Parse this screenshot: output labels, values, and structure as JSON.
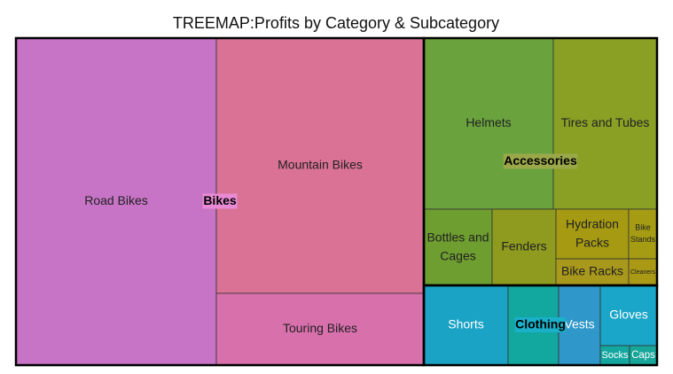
{
  "chart_data": {
    "type": "treemap",
    "title": "TREEMAP:Profits by Category & Subcategory",
    "groups": [
      {
        "name": "Bikes",
        "label_color": "#e98bd4",
        "children": [
          {
            "name": "Road Bikes",
            "value": 83394,
            "color": "#c774c6"
          },
          {
            "name": "Mountain Bikes",
            "value": 67392,
            "color": "#d97294"
          },
          {
            "name": "Touring Bikes",
            "value": 18954,
            "color": "#d870ac"
          }
        ]
      },
      {
        "name": "Accessories",
        "label_color": "#9aa84a",
        "children": [
          {
            "name": "Helmets",
            "value": 28178,
            "color": "#6aa33e"
          },
          {
            "name": "Tires and Tubes",
            "value": 22581,
            "color": "#89a025"
          },
          {
            "name": "Bottles and Cages",
            "value": 6622,
            "color": "#6f9e30"
          },
          {
            "name": "Fenders",
            "value": 6192,
            "color": "#8e9b1f"
          },
          {
            "name": "Hydration Packs",
            "value": 4592,
            "color": "#a69a12"
          },
          {
            "name": "Bike Racks",
            "value": 2460,
            "color": "#a8981b"
          },
          {
            "name": "Bike Stands",
            "value": 1792,
            "color": "#a59c14"
          },
          {
            "name": "Cleaners",
            "value": 960,
            "color": "#a99915"
          }
        ]
      },
      {
        "name": "Clothing",
        "label_color": "#1ab0c9",
        "children": [
          {
            "name": "Shorts",
            "value": 8550,
            "color": "#1ba3c6"
          },
          {
            "name": null,
            "value": 5130,
            "color": "#12a79f"
          },
          {
            "name": "Vests",
            "value": 4230,
            "color": "#2f97c9"
          },
          {
            "name": "Gloves",
            "value": 4352,
            "color": "#1aa6c8"
          },
          {
            "name": "Socks",
            "value": 726,
            "color": "#14a7a0"
          },
          {
            "name": "Caps",
            "value": 682,
            "color": "#17a69a"
          }
        ]
      }
    ]
  }
}
